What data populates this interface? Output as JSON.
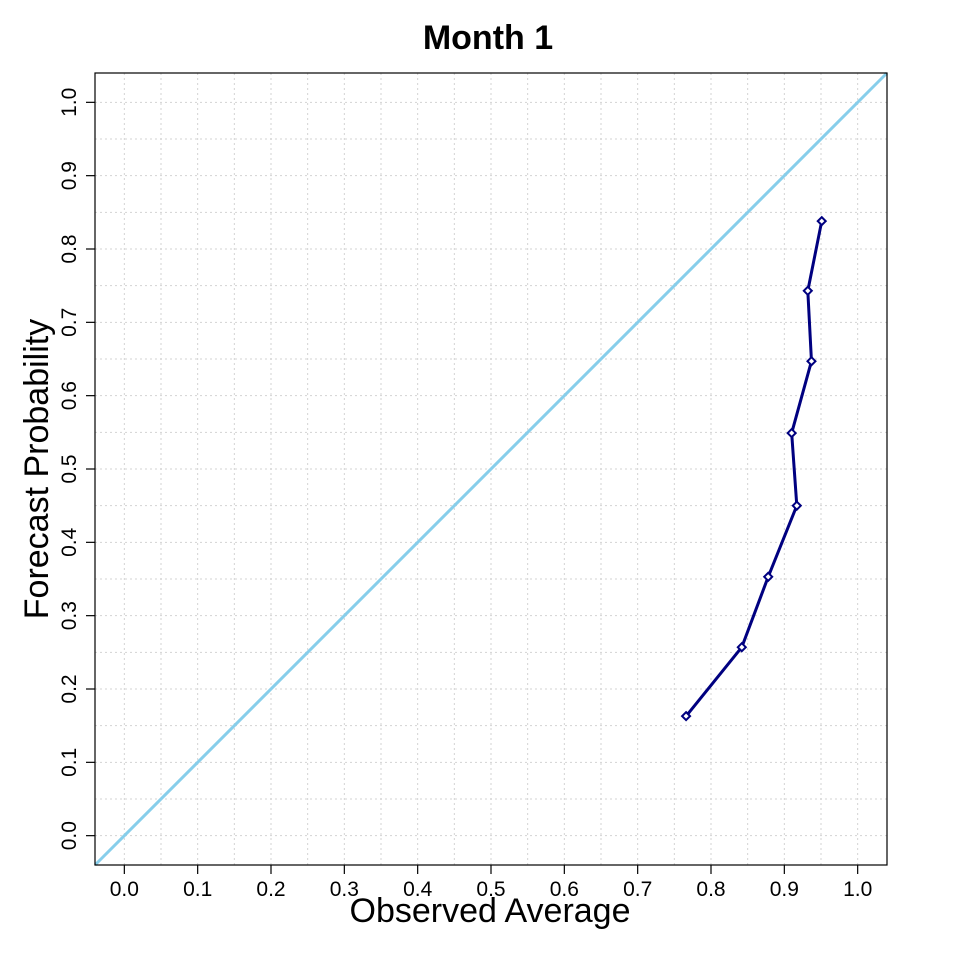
{
  "chart_data": {
    "type": "line",
    "title": "Month 1",
    "xlabel": "Observed Average",
    "ylabel": "Forecast Probability",
    "xlim": [
      -0.04,
      1.04
    ],
    "ylim": [
      -0.04,
      1.04
    ],
    "x_ticks": [
      "0.0",
      "0.1",
      "0.2",
      "0.3",
      "0.4",
      "0.5",
      "0.6",
      "0.7",
      "0.8",
      "0.9",
      "1.0"
    ],
    "y_ticks": [
      "0.0",
      "0.1",
      "0.2",
      "0.3",
      "0.4",
      "0.5",
      "0.6",
      "0.7",
      "0.8",
      "0.9",
      "1.0"
    ],
    "grid": true,
    "reference_line": {
      "from": [
        -0.04,
        -0.04
      ],
      "to": [
        1.04,
        1.04
      ],
      "color": "#87ceeb"
    },
    "series": [
      {
        "color": "#000080",
        "marker": "diamond",
        "x": [
          0.766,
          0.842,
          0.878,
          0.917,
          0.91,
          0.937,
          0.932,
          0.951
        ],
        "y": [
          0.163,
          0.257,
          0.353,
          0.45,
          0.549,
          0.647,
          0.743,
          0.838
        ]
      }
    ]
  }
}
